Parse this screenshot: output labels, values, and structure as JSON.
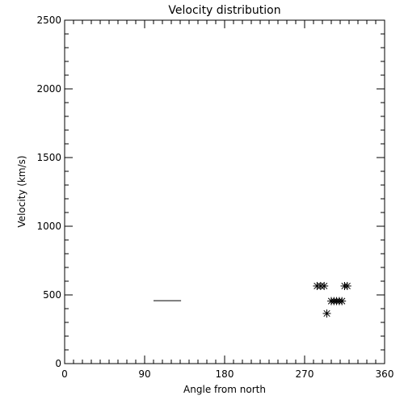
{
  "chart_data": {
    "type": "scatter",
    "title": "Velocity distribution",
    "xlabel": "Angle from north",
    "ylabel": "Velocity (km/s)",
    "xlim": [
      0,
      360
    ],
    "ylim": [
      0,
      2500
    ],
    "xticks": [
      0,
      90,
      180,
      270,
      360
    ],
    "yticks": [
      0,
      500,
      1000,
      1500,
      2000,
      2500
    ],
    "xminor_step": 10,
    "yminor_step": 100,
    "grid": false,
    "legend": "none",
    "marker": "asterisk",
    "points": [
      {
        "x": 284,
        "y": 565
      },
      {
        "x": 288,
        "y": 565
      },
      {
        "x": 292,
        "y": 565
      },
      {
        "x": 315,
        "y": 565
      },
      {
        "x": 318,
        "y": 565
      },
      {
        "x": 300,
        "y": 455
      },
      {
        "x": 303,
        "y": 455
      },
      {
        "x": 306,
        "y": 455
      },
      {
        "x": 309,
        "y": 455
      },
      {
        "x": 312,
        "y": 455
      },
      {
        "x": 295,
        "y": 365
      }
    ],
    "segments": [
      {
        "x0": 100,
        "x1": 131,
        "y": 458
      }
    ]
  }
}
